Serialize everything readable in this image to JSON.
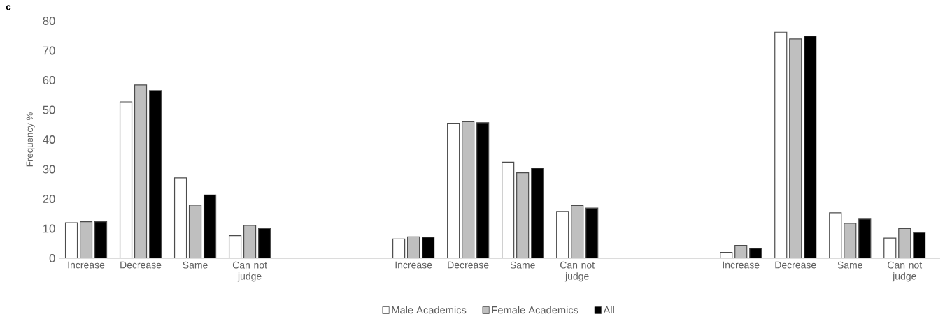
{
  "chart_data": {
    "type": "bar",
    "ylabel": "Frequency %",
    "annotations": [
      "c"
    ],
    "categories": [
      "Increase",
      "Decrease",
      "Same",
      "Can not judge",
      null,
      null,
      "Increase",
      "Decrease",
      "Same",
      "Can not judge",
      null,
      null,
      "Increase",
      "Decrease",
      "Same",
      "Can not judge"
    ],
    "series": [
      {
        "name": "Male Academics",
        "color": "#ffffff",
        "values": [
          12,
          52.7,
          27.1,
          7.6,
          null,
          null,
          6.5,
          45.5,
          32.4,
          15.8,
          null,
          null,
          2.0,
          76.2,
          15.3,
          6.8
        ]
      },
      {
        "name": "Female Academics",
        "color": "#bfbfbf",
        "values": [
          12.3,
          58.4,
          17.9,
          11.1,
          null,
          null,
          7.2,
          46.0,
          28.8,
          17.8,
          null,
          null,
          4.3,
          73.9,
          11.8,
          10.0
        ]
      },
      {
        "name": "All",
        "color": "#000000",
        "values": [
          12.3,
          56.5,
          21.3,
          10.0,
          null,
          null,
          7.1,
          45.7,
          30.4,
          16.9,
          null,
          null,
          3.3,
          74.9,
          13.2,
          8.6
        ]
      }
    ],
    "ylim": [
      0,
      80
    ],
    "yticks": [
      0,
      10,
      20,
      30,
      40,
      50,
      60,
      70,
      80
    ],
    "grid": false,
    "legend": "bottom"
  }
}
